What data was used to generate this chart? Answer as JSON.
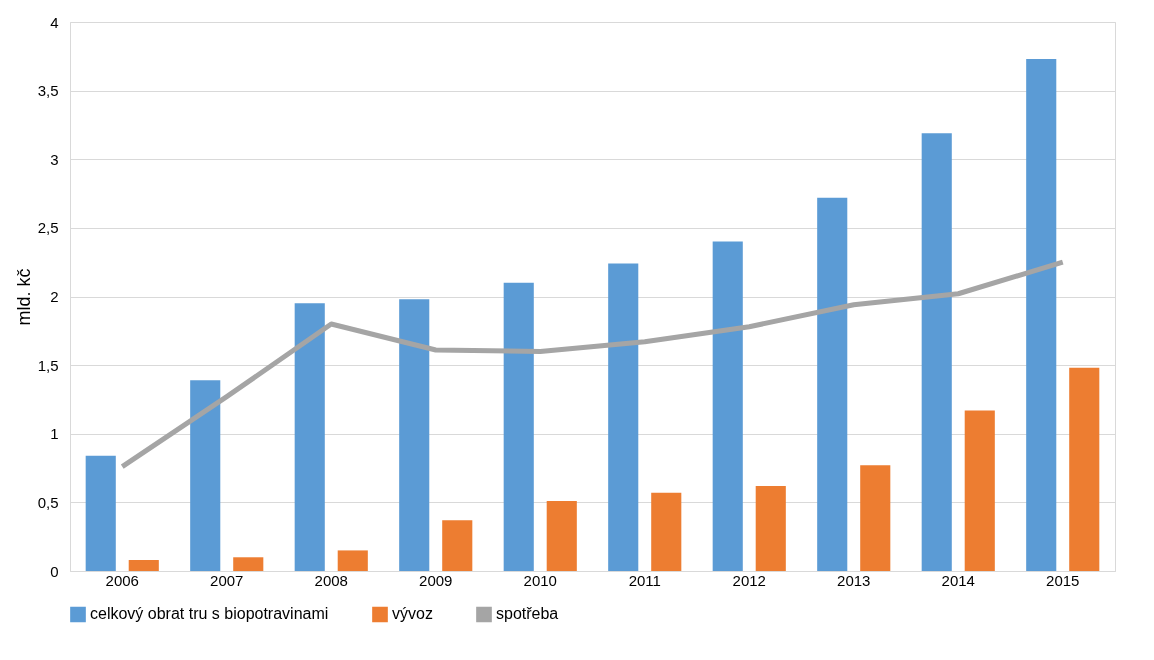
{
  "chart_data": {
    "type": "bar",
    "ylabel": "mld. kč",
    "categories": [
      "2006",
      "2007",
      "2008",
      "2009",
      "2010",
      "2011",
      "2012",
      "2013",
      "2014",
      "2015"
    ],
    "series": [
      {
        "name": "celkový obrat tru s biopotravinami",
        "color": "#5b9bd5",
        "values": [
          0.84,
          1.39,
          1.95,
          1.98,
          2.1,
          2.24,
          2.4,
          2.72,
          3.19,
          3.73
        ]
      },
      {
        "name": "vývoz",
        "color": "#ed7d31",
        "values": [
          0.08,
          0.1,
          0.15,
          0.37,
          0.51,
          0.57,
          0.62,
          0.77,
          1.17,
          1.48
        ]
      },
      {
        "name": "spotřeba",
        "type": "line",
        "color": "#a5a5a5",
        "values": [
          0.76,
          1.27,
          1.8,
          1.61,
          1.6,
          1.67,
          1.78,
          1.94,
          2.02,
          2.25
        ]
      }
    ],
    "ylim": [
      0,
      4
    ],
    "yticks": [
      0,
      {
        "value": 0.5,
        "label": "0,5"
      },
      1,
      {
        "value": 1.5,
        "label": "1,5"
      },
      2,
      {
        "value": 2.5,
        "label": "2,5"
      },
      3,
      {
        "value": 3.5,
        "label": "3,5"
      },
      4
    ],
    "grid": "y",
    "legend": "bottom",
    "marker": "none"
  }
}
